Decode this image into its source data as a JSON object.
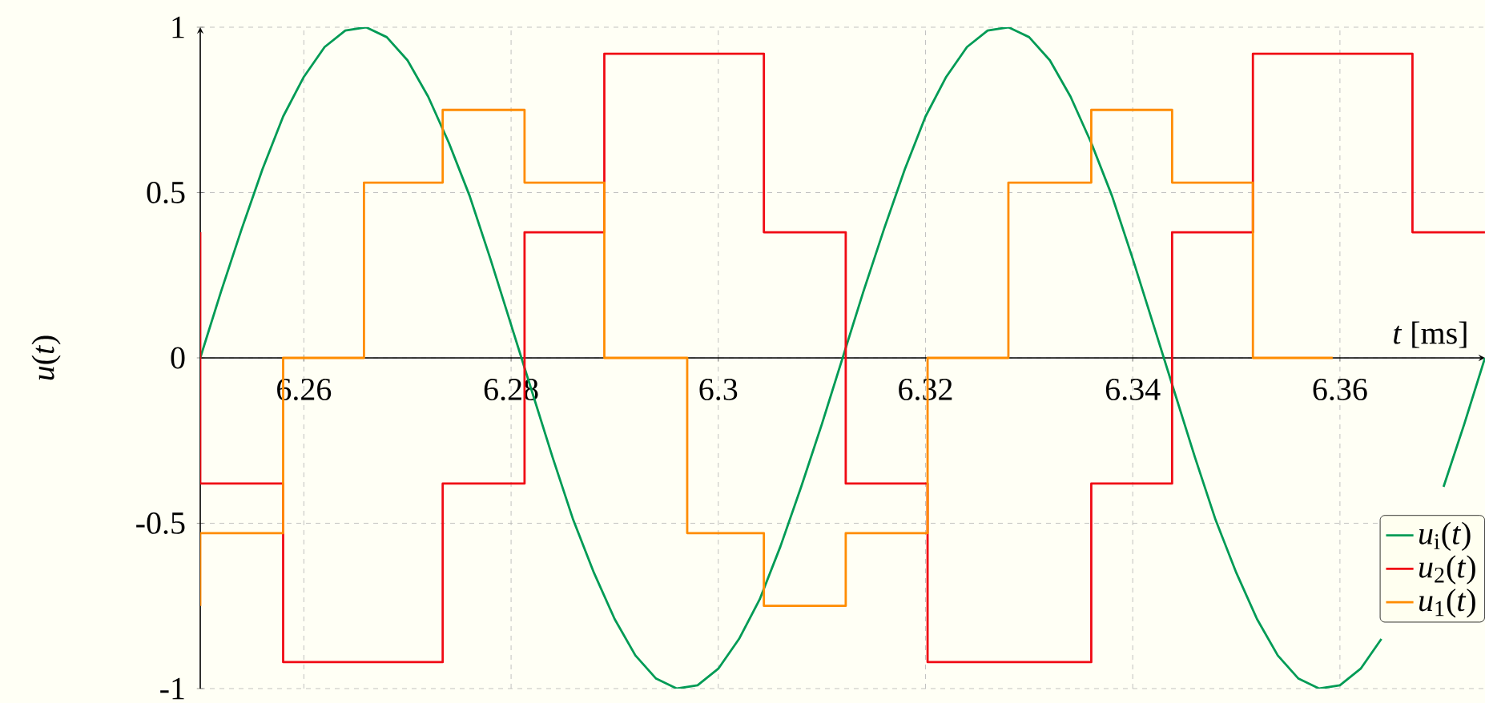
{
  "chart_data": {
    "type": "line",
    "xlabel": "*t* [ms]",
    "ylabel": "*u*(*t*)",
    "xlim": [
      6.25,
      6.374
    ],
    "ylim": [
      -1,
      1
    ],
    "xticks": [
      6.26,
      6.28,
      6.3,
      6.32,
      6.34,
      6.36
    ],
    "yticks": [
      -1,
      -0.5,
      0,
      0.5,
      1
    ],
    "grid": true,
    "legend": "bottom right",
    "marker": "none",
    "line_style": "solid",
    "series": [
      {
        "name": "*u*$_{i}$(*t*)",
        "color": "#009b55",
        "x": [
          6.25,
          6.252,
          6.254,
          6.256,
          6.258,
          6.26,
          6.262,
          6.264,
          6.266,
          6.268,
          6.27,
          6.272,
          6.274,
          6.276,
          6.278,
          6.28,
          6.282,
          6.284,
          6.286,
          6.288,
          6.29,
          6.292,
          6.294,
          6.296,
          6.298,
          6.3,
          6.302,
          6.304,
          6.306,
          6.308,
          6.31,
          6.312,
          6.314,
          6.316,
          6.318,
          6.32,
          6.322,
          6.324,
          6.326,
          6.328,
          6.33,
          6.332,
          6.334,
          6.336,
          6.338,
          6.34,
          6.342,
          6.344,
          6.346,
          6.348,
          6.35,
          6.352,
          6.354,
          6.356,
          6.358,
          6.36,
          6.362,
          6.364,
          6.366,
          6.368,
          6.37,
          6.372,
          6.374
        ],
        "values": [
          0,
          0.2,
          0.39,
          0.57,
          0.73,
          0.85,
          0.94,
          0.99,
          1,
          0.97,
          0.9,
          0.79,
          0.65,
          0.49,
          0.3,
          0.1,
          -0.1,
          -0.3,
          -0.49,
          -0.65,
          -0.79,
          -0.9,
          -0.97,
          -1,
          -0.99,
          -0.94,
          -0.85,
          -0.73,
          -0.57,
          -0.39,
          -0.2,
          0,
          0.2,
          0.39,
          0.57,
          0.73,
          0.85,
          0.94,
          0.99,
          1,
          0.97,
          0.9,
          0.79,
          0.65,
          0.49,
          0.3,
          0.1,
          -0.1,
          -0.3,
          -0.49,
          -0.65,
          -0.79,
          -0.9,
          -0.97,
          -1,
          -0.99,
          -0.94,
          -0.85,
          null,
          null,
          -0.39,
          -0.2,
          0
        ]
      },
      {
        "name": "*u*$_{2}$(*t*)",
        "color": "#f00a14",
        "x": [
          6.25,
          6.25,
          6.258,
          6.258,
          6.2734,
          6.2734,
          6.2813,
          6.2813,
          6.289,
          6.289,
          6.3044,
          6.3044,
          6.3123,
          6.3123,
          6.3202,
          6.3202,
          6.336,
          6.336,
          6.3438,
          6.3438,
          6.3516,
          6.3516,
          6.367,
          6.367,
          6.374
        ],
        "values": [
          0.38,
          -0.38,
          -0.38,
          -0.92,
          -0.92,
          -0.38,
          -0.38,
          0.38,
          0.38,
          0.92,
          0.92,
          0.38,
          0.38,
          -0.38,
          -0.38,
          -0.92,
          -0.92,
          -0.38,
          -0.38,
          0.38,
          0.38,
          0.92,
          0.92,
          0.38,
          0.38
        ]
      },
      {
        "name": "*u*$_{1}$(*t*)",
        "color": "#ff8c00",
        "x": [
          6.25,
          6.25,
          6.258,
          6.258,
          6.2658,
          6.2658,
          6.2734,
          6.2734,
          6.2813,
          6.2813,
          6.289,
          6.289,
          6.297,
          6.297,
          6.3044,
          6.3044,
          6.3123,
          6.3123,
          6.3202,
          6.3202,
          6.328,
          6.328,
          6.336,
          6.336,
          6.3438,
          6.3438,
          6.3516,
          6.3516,
          6.3593
        ],
        "values": [
          -0.75,
          -0.53,
          -0.53,
          0,
          0,
          0.53,
          0.53,
          0.75,
          0.75,
          0.53,
          0.53,
          0,
          0,
          -0.53,
          -0.53,
          -0.75,
          -0.75,
          -0.53,
          -0.53,
          0,
          0,
          0.53,
          0.53,
          0.75,
          0.75,
          0.53,
          0.53,
          0,
          0
        ]
      }
    ]
  }
}
